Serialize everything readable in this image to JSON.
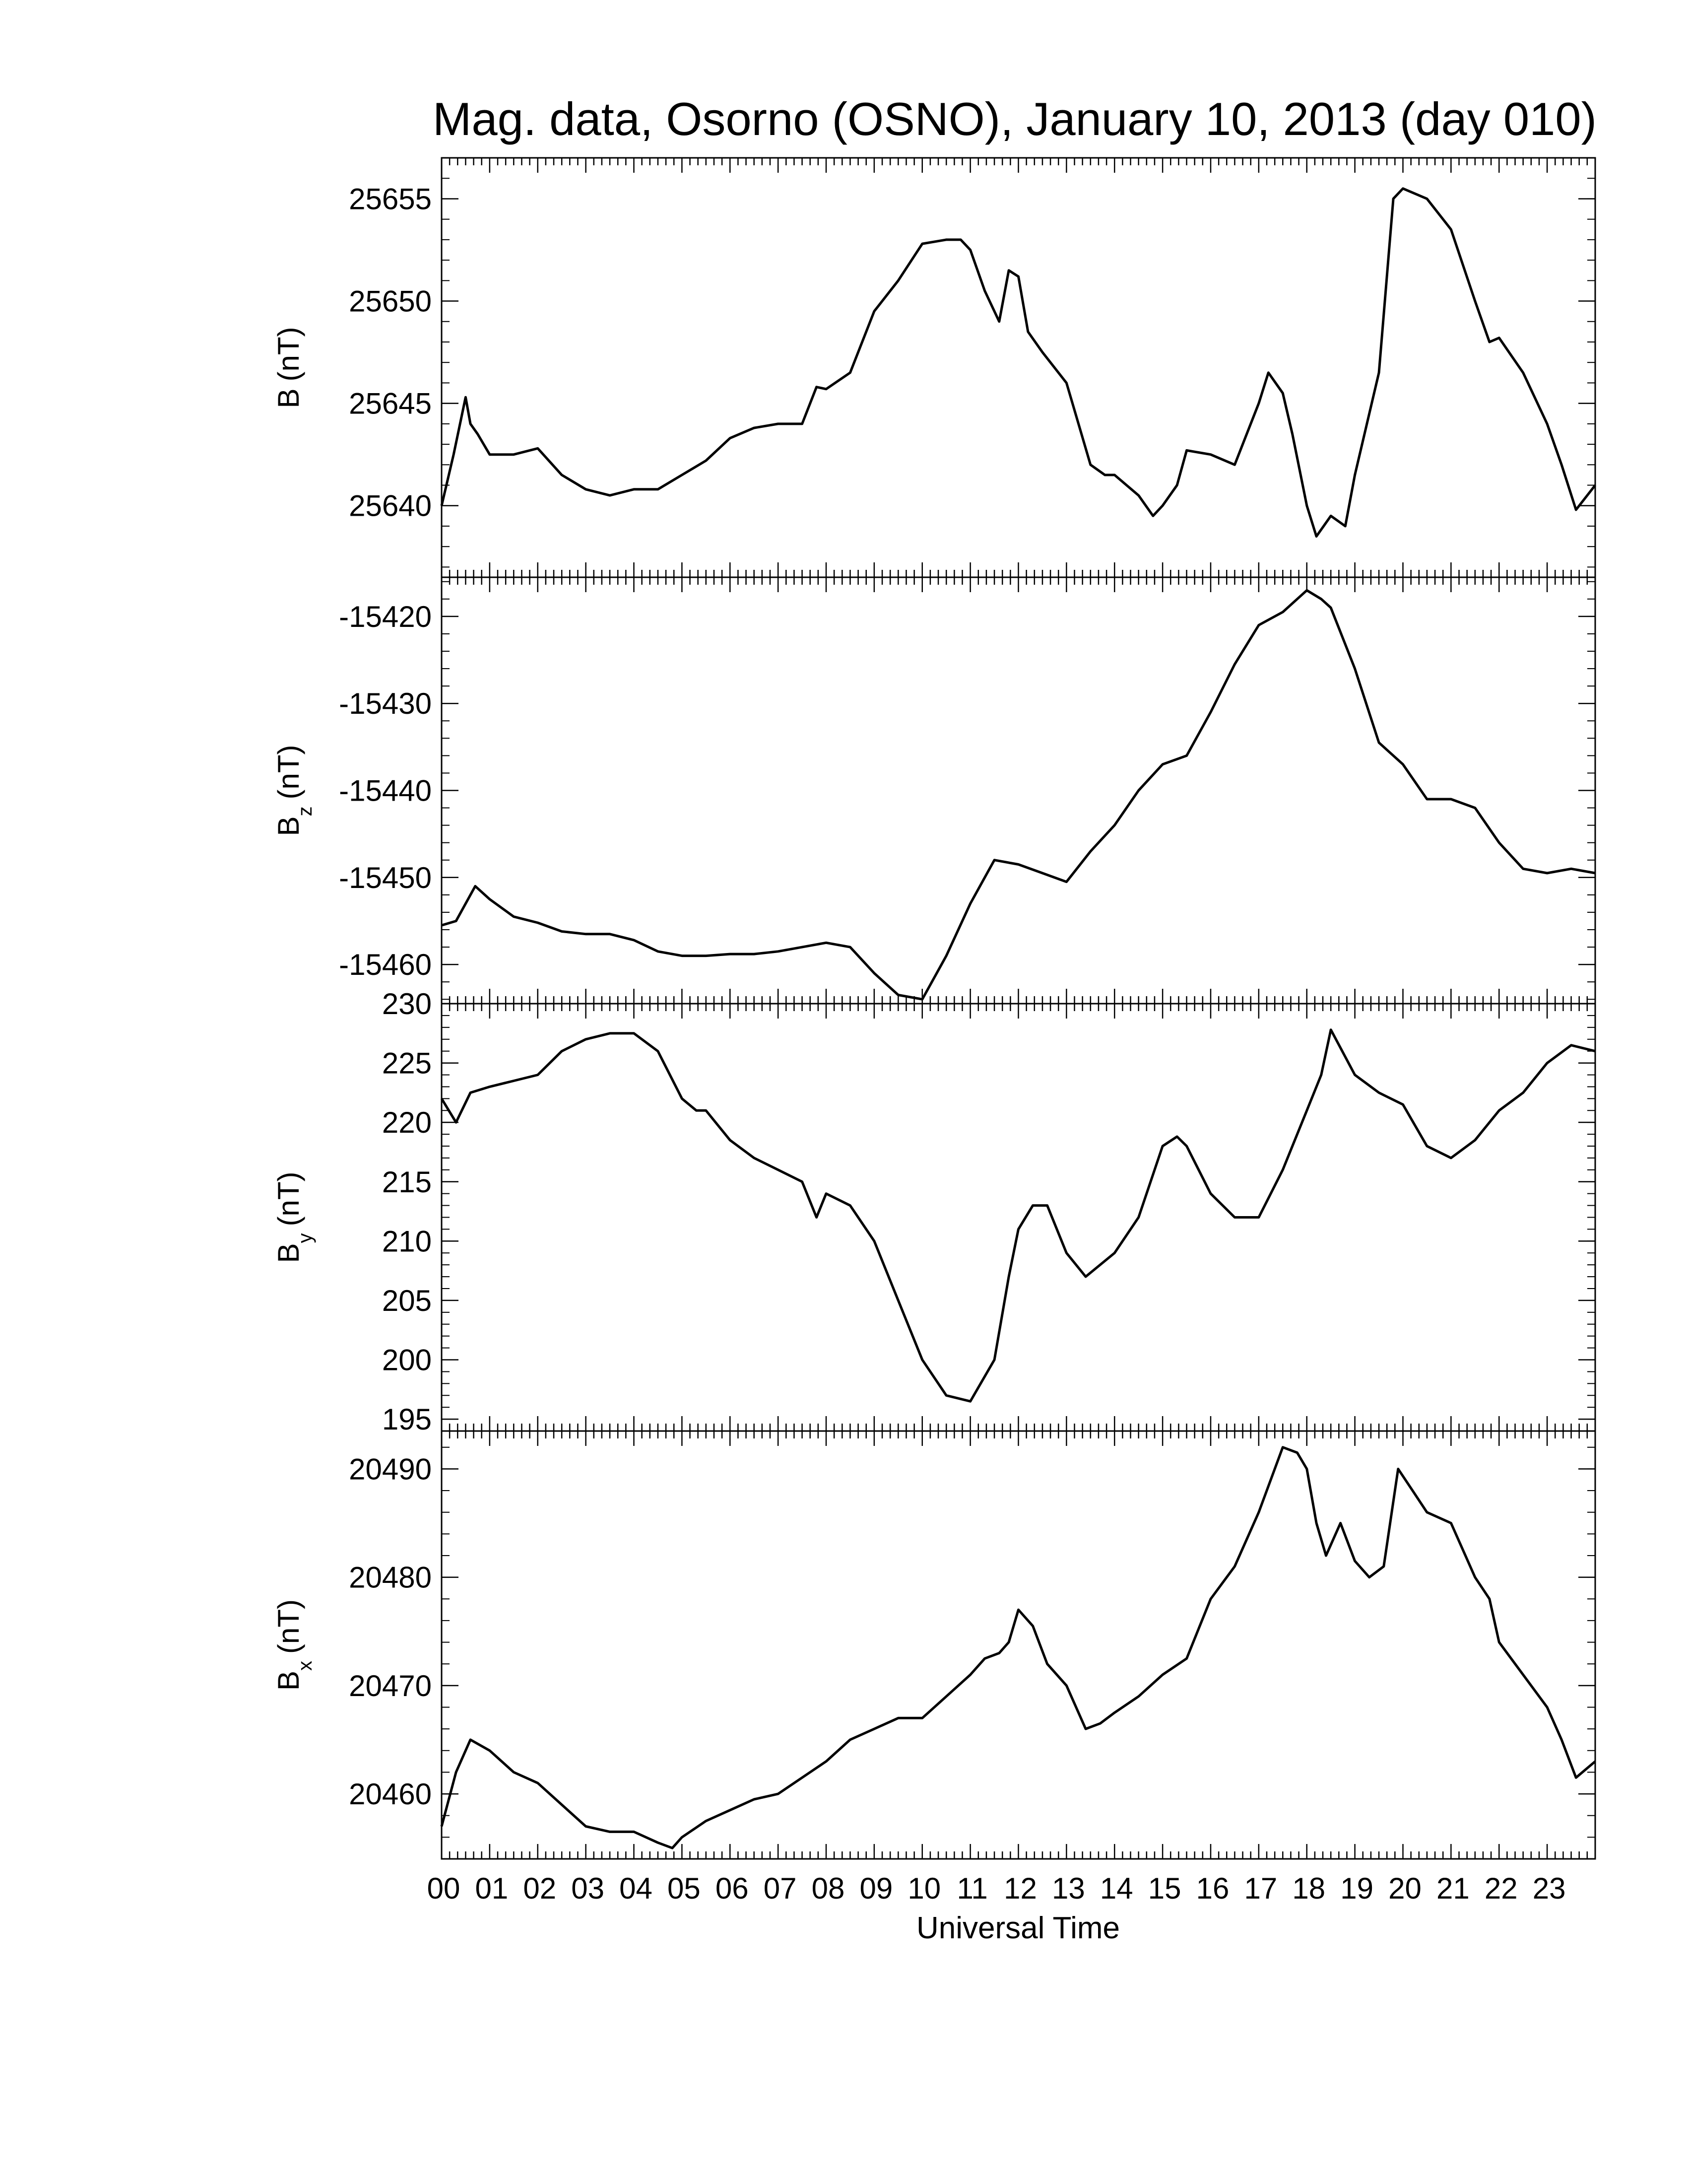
{
  "chart_data": {
    "title": "Mag. data, Osorno (OSNO), January 10, 2013 (day 010)",
    "type": "line",
    "x_axis": {
      "label": "Universal Time",
      "unit": "hour",
      "range": [
        0,
        24
      ],
      "tick_values": [
        0,
        1,
        2,
        3,
        4,
        5,
        6,
        7,
        8,
        9,
        10,
        11,
        12,
        13,
        14,
        15,
        16,
        17,
        18,
        19,
        20,
        21,
        22,
        23
      ],
      "tick_labels": [
        "00",
        "01",
        "02",
        "03",
        "04",
        "05",
        "06",
        "07",
        "08",
        "09",
        "10",
        "11",
        "12",
        "13",
        "14",
        "15",
        "16",
        "17",
        "18",
        "19",
        "20",
        "21",
        "22",
        "23"
      ],
      "minor_ticks_per_hour": 6
    },
    "line_color": "#000000",
    "panels": [
      {
        "id": "B",
        "label_main": "B",
        "label_sub": "",
        "label_unit": "(nT)",
        "ylim": [
          25636.5,
          25657.0
        ],
        "yticks": [
          25640,
          25645,
          25650,
          25655
        ],
        "x": [
          0,
          0.25,
          0.5,
          0.6,
          0.75,
          1,
          1.5,
          2,
          2.5,
          3,
          3.5,
          4,
          4.5,
          5,
          5.5,
          6,
          6.5,
          7,
          7.5,
          7.8,
          8,
          8.5,
          9,
          9.5,
          10,
          10.5,
          10.8,
          11,
          11.3,
          11.6,
          11.8,
          12,
          12.2,
          12.5,
          13,
          13.5,
          13.8,
          14,
          14.5,
          14.8,
          15,
          15.3,
          15.5,
          16,
          16.5,
          17,
          17.2,
          17.5,
          17.7,
          18,
          18.2,
          18.5,
          18.8,
          19,
          19.5,
          19.8,
          20,
          20.5,
          21,
          21.5,
          21.8,
          22,
          22.5,
          23,
          23.3,
          23.6,
          24
        ],
        "y": [
          25640,
          25642.5,
          25645.3,
          25644,
          25643.5,
          25642.5,
          25642.5,
          25642.8,
          25641.5,
          25640.8,
          25640.5,
          25640.8,
          25640.8,
          25641.5,
          25642.2,
          25643.3,
          25643.8,
          25644,
          25644,
          25645.8,
          25645.7,
          25646.5,
          25649.5,
          25651,
          25652.8,
          25653,
          25653,
          25652.5,
          25650.5,
          25649,
          25651.5,
          25651.2,
          25648.5,
          25647.5,
          25646,
          25642,
          25641.5,
          25641.5,
          25640.5,
          25639.5,
          25640,
          25641,
          25642.7,
          25642.5,
          25642,
          25645,
          25646.5,
          25645.5,
          25643.5,
          25640,
          25638.5,
          25639.5,
          25639,
          25641.5,
          25646.5,
          25655,
          25655.5,
          25655,
          25653.5,
          25650,
          25648,
          25648.2,
          25646.5,
          25644,
          25642,
          25639.8,
          25641
        ]
      },
      {
        "id": "Bz",
        "label_main": "B",
        "label_sub": "z",
        "label_unit": "(nT)",
        "ylim": [
          -15464.5,
          -15415.5
        ],
        "yticks": [
          -15460,
          -15450,
          -15440,
          -15430,
          -15420
        ],
        "x": [
          0,
          0.3,
          0.7,
          1,
          1.5,
          2,
          2.5,
          3,
          3.5,
          4,
          4.5,
          5,
          5.5,
          6,
          6.5,
          7,
          7.5,
          8,
          8.5,
          9,
          9.5,
          10,
          10.5,
          11,
          11.5,
          12,
          12.5,
          13,
          13.5,
          14,
          14.5,
          15,
          15.5,
          16,
          16.5,
          17,
          17.5,
          18,
          18.3,
          18.5,
          19,
          19.5,
          20,
          20.5,
          21,
          21.5,
          22,
          22.5,
          23,
          23.5,
          24
        ],
        "y": [
          -15455.5,
          -15455,
          -15451,
          -15452.5,
          -15454.5,
          -15455.2,
          -15456.2,
          -15456.5,
          -15456.5,
          -15457.2,
          -15458.5,
          -15459,
          -15459,
          -15458.8,
          -15458.8,
          -15458.5,
          -15458,
          -15457.5,
          -15458,
          -15461,
          -15463.5,
          -15464,
          -15459,
          -15453,
          -15448,
          -15448.5,
          -15449.5,
          -15450.5,
          -15447,
          -15444,
          -15440,
          -15437,
          -15436,
          -15431,
          -15425.5,
          -15421,
          -15419.5,
          -15417,
          -15418,
          -15419,
          -15426,
          -15434.5,
          -15437,
          -15441,
          -15441,
          -15442,
          -15446,
          -15449,
          -15449.5,
          -15449,
          -15449.5
        ]
      },
      {
        "id": "By",
        "label_main": "B",
        "label_sub": "y",
        "label_unit": "(nT)",
        "ylim": [
          194.0,
          230.0
        ],
        "yticks": [
          195,
          200,
          205,
          210,
          215,
          220,
          225,
          230
        ],
        "x": [
          0,
          0.3,
          0.6,
          1,
          1.5,
          2,
          2.5,
          3,
          3.5,
          4,
          4.5,
          5,
          5.3,
          5.5,
          6,
          6.5,
          7,
          7.5,
          7.8,
          8,
          8.5,
          9,
          9.5,
          10,
          10.5,
          11,
          11.5,
          11.8,
          12,
          12.3,
          12.6,
          13,
          13.4,
          13.7,
          14,
          14.5,
          15,
          15.3,
          15.5,
          16,
          16.5,
          17,
          17.5,
          18,
          18.3,
          18.5,
          19,
          19.5,
          20,
          20.5,
          21,
          21.5,
          22,
          22.5,
          23,
          23.5,
          24
        ],
        "y": [
          222,
          220,
          222.5,
          223,
          223.5,
          224,
          226,
          227,
          227.5,
          227.5,
          226,
          222,
          221,
          221,
          218.5,
          217,
          216,
          215,
          212,
          214,
          213,
          210,
          205,
          200,
          197,
          196.5,
          200,
          207,
          211,
          213,
          213,
          209,
          207,
          208,
          209,
          212,
          218,
          218.8,
          218,
          214,
          212,
          212,
          216,
          221,
          224,
          227.8,
          224,
          222.5,
          221.5,
          218,
          217,
          218.5,
          221,
          222.5,
          225,
          226.5,
          226
        ]
      },
      {
        "id": "Bx",
        "label_main": "B",
        "label_sub": "x",
        "label_unit": "(nT)",
        "ylim": [
          20454.0,
          20493.5
        ],
        "yticks": [
          20460,
          20470,
          20480,
          20490
        ],
        "x": [
          0,
          0.3,
          0.6,
          1,
          1.5,
          2,
          2.5,
          3,
          3.5,
          4,
          4.5,
          4.8,
          5,
          5.5,
          6,
          6.5,
          7,
          7.5,
          8,
          8.5,
          9,
          9.5,
          10,
          10.5,
          11,
          11.3,
          11.6,
          11.8,
          12,
          12.3,
          12.6,
          13,
          13.4,
          13.7,
          14,
          14.5,
          15,
          15.5,
          16,
          16.5,
          17,
          17.5,
          17.8,
          18,
          18.2,
          18.4,
          18.7,
          19,
          19.3,
          19.6,
          19.9,
          20.2,
          20.5,
          21,
          21.5,
          21.8,
          22,
          22.5,
          23,
          23.3,
          23.6,
          24
        ],
        "y": [
          20457,
          20462,
          20465,
          20464,
          20462,
          20461,
          20459,
          20457,
          20456.5,
          20456.5,
          20455.5,
          20455,
          20456,
          20457.5,
          20458.5,
          20459.5,
          20460,
          20461.5,
          20463,
          20465,
          20466,
          20467,
          20467,
          20469,
          20471,
          20472.5,
          20473,
          20474,
          20477,
          20475.5,
          20472,
          20470,
          20466,
          20466.5,
          20467.5,
          20469,
          20471,
          20472.5,
          20478,
          20481,
          20486,
          20492,
          20491.5,
          20490,
          20485,
          20482,
          20485,
          20481.5,
          20480,
          20481,
          20490,
          20488,
          20486,
          20485,
          20480,
          20478,
          20474,
          20471,
          20468,
          20465,
          20461.5,
          20463
        ]
      }
    ]
  }
}
